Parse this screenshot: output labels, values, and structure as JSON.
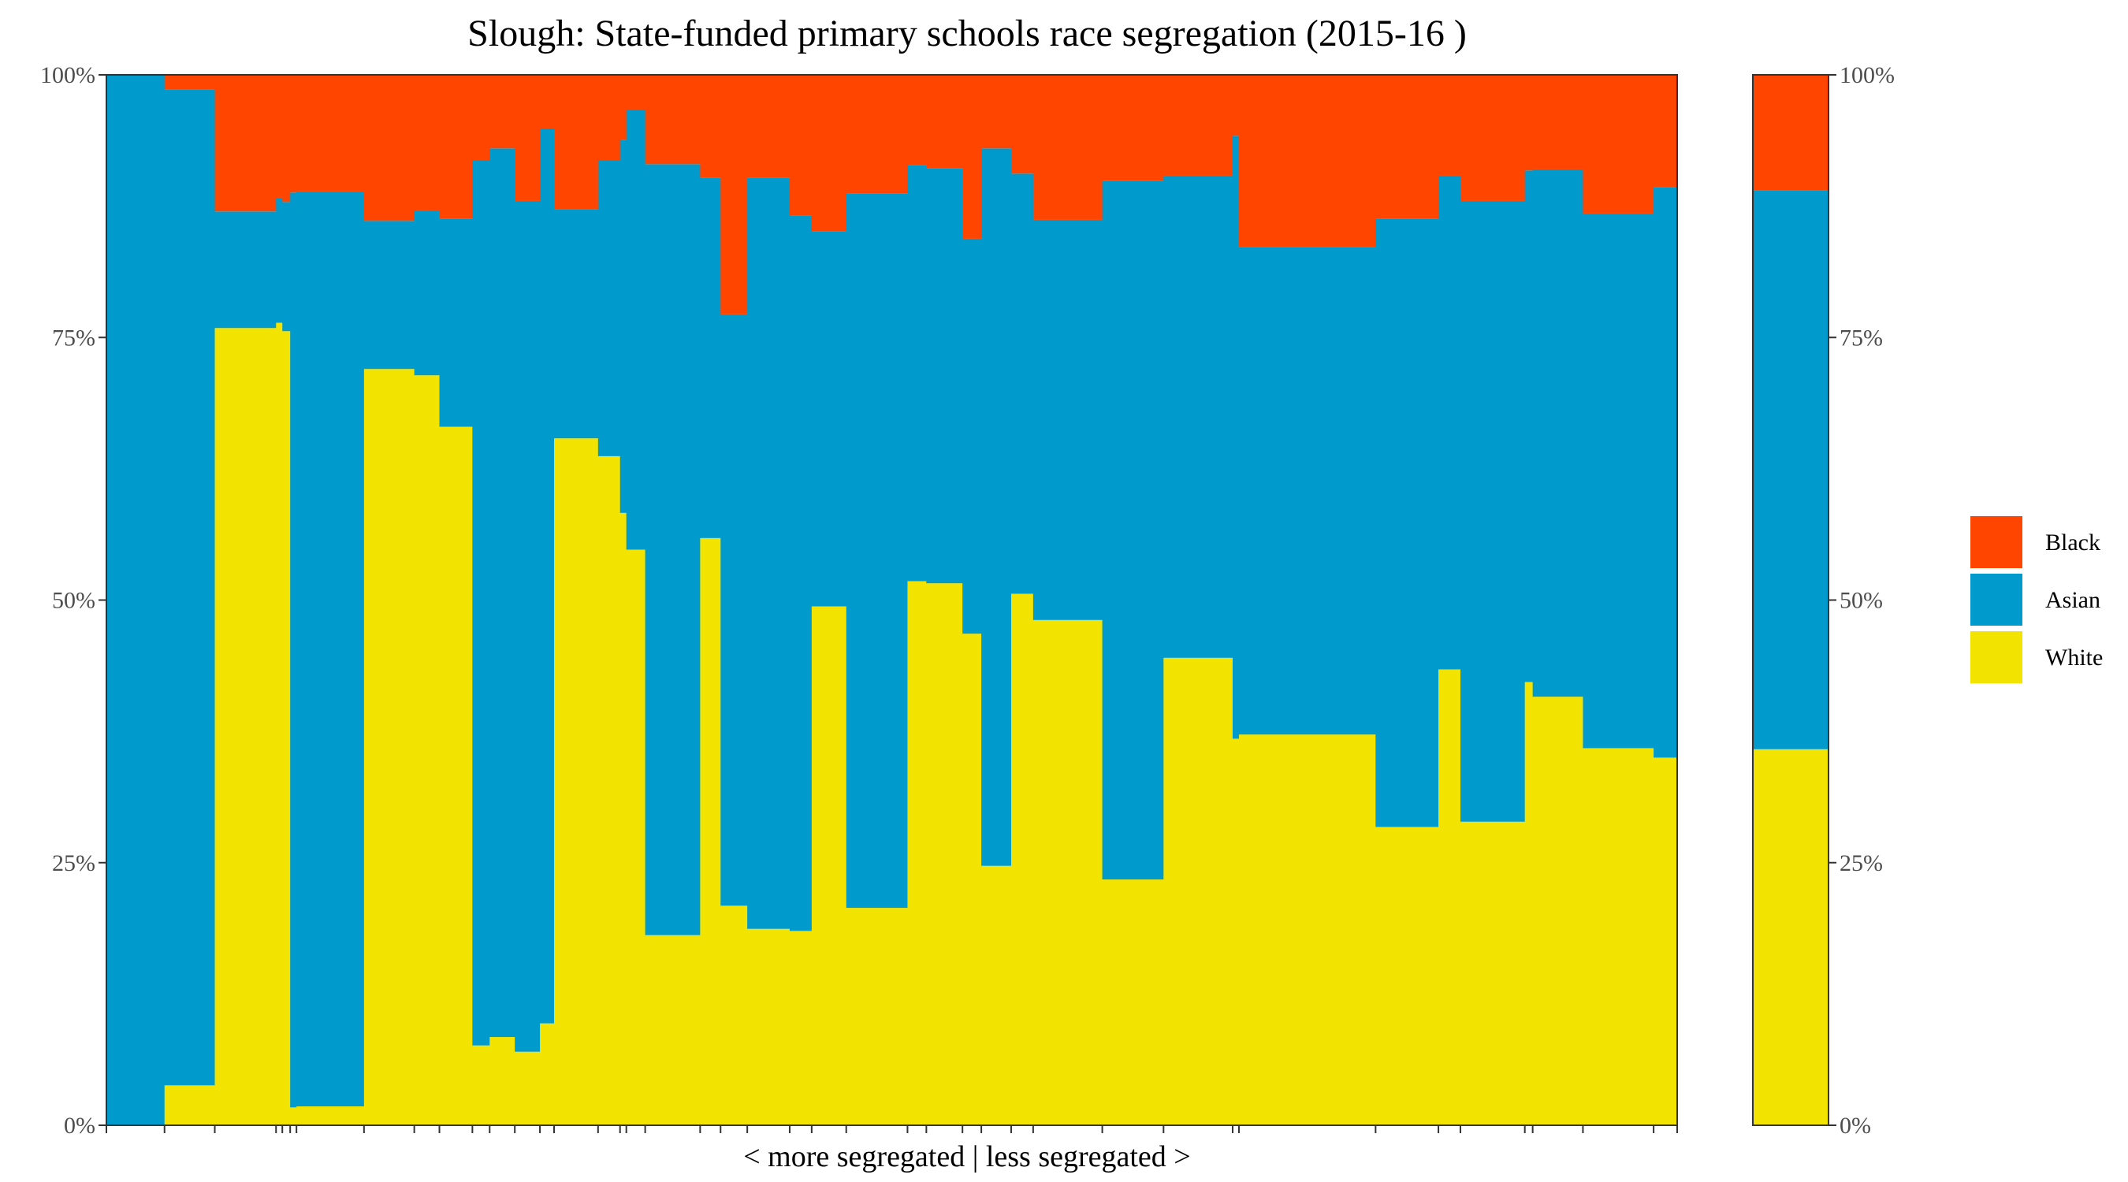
{
  "chart_data": {
    "type": "bar",
    "stacked": true,
    "title": "Slough: State-funded primary schools race segregation (2015-16 )",
    "xlabel": "< more segregated | less segregated >",
    "ylabel": "",
    "ylim": [
      0,
      100
    ],
    "y_ticks": [
      "0%",
      "25%",
      "50%",
      "75%",
      "100%"
    ],
    "y_tick_values": [
      0,
      25,
      50,
      75,
      100
    ],
    "legend_position": "right",
    "legend": [
      {
        "name": "Black",
        "color": "#ff4500"
      },
      {
        "name": "Asian",
        "color": "#009acd"
      },
      {
        "name": "White",
        "color": "#f2e400"
      }
    ],
    "colors": {
      "Black": "#ff4500",
      "Asian": "#009acd",
      "White": "#f2e400",
      "panel_border": "#333333"
    },
    "grid": false,
    "x_range": [
      0,
      100
    ],
    "schools": [
      {
        "x0": 0.0,
        "x1": 3.7,
        "white": 0.0,
        "asian": 100.0,
        "black": 0.0
      },
      {
        "x0": 3.7,
        "x1": 6.9,
        "white": 3.8,
        "asian": 94.8,
        "black": 1.4
      },
      {
        "x0": 6.9,
        "x1": 10.8,
        "white": 75.9,
        "asian": 11.1,
        "black": 13.0
      },
      {
        "x0": 10.8,
        "x1": 11.2,
        "white": 76.4,
        "asian": 11.9,
        "black": 11.7
      },
      {
        "x0": 11.2,
        "x1": 11.7,
        "white": 75.6,
        "asian": 12.3,
        "black": 12.1
      },
      {
        "x0": 11.7,
        "x1": 12.1,
        "white": 1.7,
        "asian": 87.1,
        "black": 11.2
      },
      {
        "x0": 12.1,
        "x1": 16.4,
        "white": 1.8,
        "asian": 87.1,
        "black": 11.1
      },
      {
        "x0": 16.4,
        "x1": 19.6,
        "white": 72.0,
        "asian": 14.1,
        "black": 13.9
      },
      {
        "x0": 19.6,
        "x1": 21.2,
        "white": 71.4,
        "asian": 15.7,
        "black": 12.9
      },
      {
        "x0": 21.2,
        "x1": 23.3,
        "white": 66.5,
        "asian": 19.8,
        "black": 13.7
      },
      {
        "x0": 23.3,
        "x1": 24.4,
        "white": 7.6,
        "asian": 84.3,
        "black": 8.1
      },
      {
        "x0": 24.4,
        "x1": 26.0,
        "white": 8.4,
        "asian": 84.6,
        "black": 7.0
      },
      {
        "x0": 26.0,
        "x1": 27.6,
        "white": 7.0,
        "asian": 81.0,
        "black": 12.0
      },
      {
        "x0": 27.6,
        "x1": 28.5,
        "white": 9.7,
        "asian": 85.2,
        "black": 5.1
      },
      {
        "x0": 28.5,
        "x1": 31.3,
        "white": 65.4,
        "asian": 21.8,
        "black": 12.8
      },
      {
        "x0": 31.3,
        "x1": 32.7,
        "white": 63.7,
        "asian": 28.2,
        "black": 8.1
      },
      {
        "x0": 32.7,
        "x1": 33.1,
        "white": 58.3,
        "asian": 35.5,
        "black": 6.2
      },
      {
        "x0": 33.1,
        "x1": 34.3,
        "white": 54.8,
        "asian": 41.9,
        "black": 3.3
      },
      {
        "x0": 34.3,
        "x1": 37.8,
        "white": 18.1,
        "asian": 73.4,
        "black": 8.5
      },
      {
        "x0": 37.8,
        "x1": 39.1,
        "white": 55.9,
        "asian": 34.3,
        "black": 9.8
      },
      {
        "x0": 39.1,
        "x1": 40.8,
        "white": 20.9,
        "asian": 56.3,
        "black": 22.8
      },
      {
        "x0": 40.8,
        "x1": 43.5,
        "white": 18.7,
        "asian": 71.5,
        "black": 9.8
      },
      {
        "x0": 43.5,
        "x1": 44.9,
        "white": 18.5,
        "asian": 68.1,
        "black": 13.4
      },
      {
        "x0": 44.9,
        "x1": 47.1,
        "white": 49.4,
        "asian": 35.7,
        "black": 14.9
      },
      {
        "x0": 47.1,
        "x1": 51.0,
        "white": 20.7,
        "asian": 68.0,
        "black": 11.3
      },
      {
        "x0": 51.0,
        "x1": 52.2,
        "white": 51.8,
        "asian": 39.6,
        "black": 8.6
      },
      {
        "x0": 52.2,
        "x1": 54.5,
        "white": 51.6,
        "asian": 39.5,
        "black": 8.9
      },
      {
        "x0": 54.5,
        "x1": 55.7,
        "white": 46.8,
        "asian": 37.6,
        "black": 15.6
      },
      {
        "x0": 55.7,
        "x1": 57.6,
        "white": 24.7,
        "asian": 68.3,
        "black": 7.0
      },
      {
        "x0": 57.6,
        "x1": 59.0,
        "white": 50.6,
        "asian": 40.0,
        "black": 9.4
      },
      {
        "x0": 59.0,
        "x1": 63.4,
        "white": 48.1,
        "asian": 38.1,
        "black": 13.8
      },
      {
        "x0": 63.4,
        "x1": 67.3,
        "white": 23.4,
        "asian": 66.5,
        "black": 10.1
      },
      {
        "x0": 67.3,
        "x1": 71.7,
        "white": 44.5,
        "asian": 45.9,
        "black": 9.6
      },
      {
        "x0": 71.7,
        "x1": 72.1,
        "white": 36.8,
        "asian": 57.4,
        "black": 5.8
      },
      {
        "x0": 72.1,
        "x1": 80.8,
        "white": 37.2,
        "asian": 46.4,
        "black": 16.4
      },
      {
        "x0": 80.8,
        "x1": 84.8,
        "white": 28.4,
        "asian": 57.9,
        "black": 13.7
      },
      {
        "x0": 84.8,
        "x1": 86.2,
        "white": 43.4,
        "asian": 47.0,
        "black": 9.6
      },
      {
        "x0": 86.2,
        "x1": 90.3,
        "white": 28.9,
        "asian": 59.1,
        "black": 12.0
      },
      {
        "x0": 90.3,
        "x1": 90.8,
        "white": 42.2,
        "asian": 48.7,
        "black": 9.1
      },
      {
        "x0": 90.8,
        "x1": 94.0,
        "white": 40.8,
        "asian": 50.2,
        "black": 9.0
      },
      {
        "x0": 94.0,
        "x1": 98.5,
        "white": 35.9,
        "asian": 50.9,
        "black": 13.2
      },
      {
        "x0": 98.5,
        "x1": 100.0,
        "white": 35.0,
        "asian": 54.3,
        "black": 10.7
      }
    ],
    "x_ticks": [
      0,
      3.7,
      6.9,
      10.8,
      11.2,
      11.7,
      12.1,
      16.4,
      19.6,
      21.2,
      23.3,
      24.4,
      26.0,
      27.6,
      28.5,
      31.3,
      32.7,
      33.1,
      34.3,
      37.8,
      39.1,
      40.8,
      43.5,
      44.9,
      47.1,
      51.0,
      52.2,
      54.5,
      55.7,
      57.6,
      59.0,
      63.4,
      67.3,
      71.7,
      72.1,
      80.8,
      84.8,
      86.2,
      90.3,
      90.8,
      94.0,
      98.5,
      100.0
    ],
    "overall": {
      "white": 35.8,
      "asian": 53.2,
      "black": 11.0
    }
  }
}
